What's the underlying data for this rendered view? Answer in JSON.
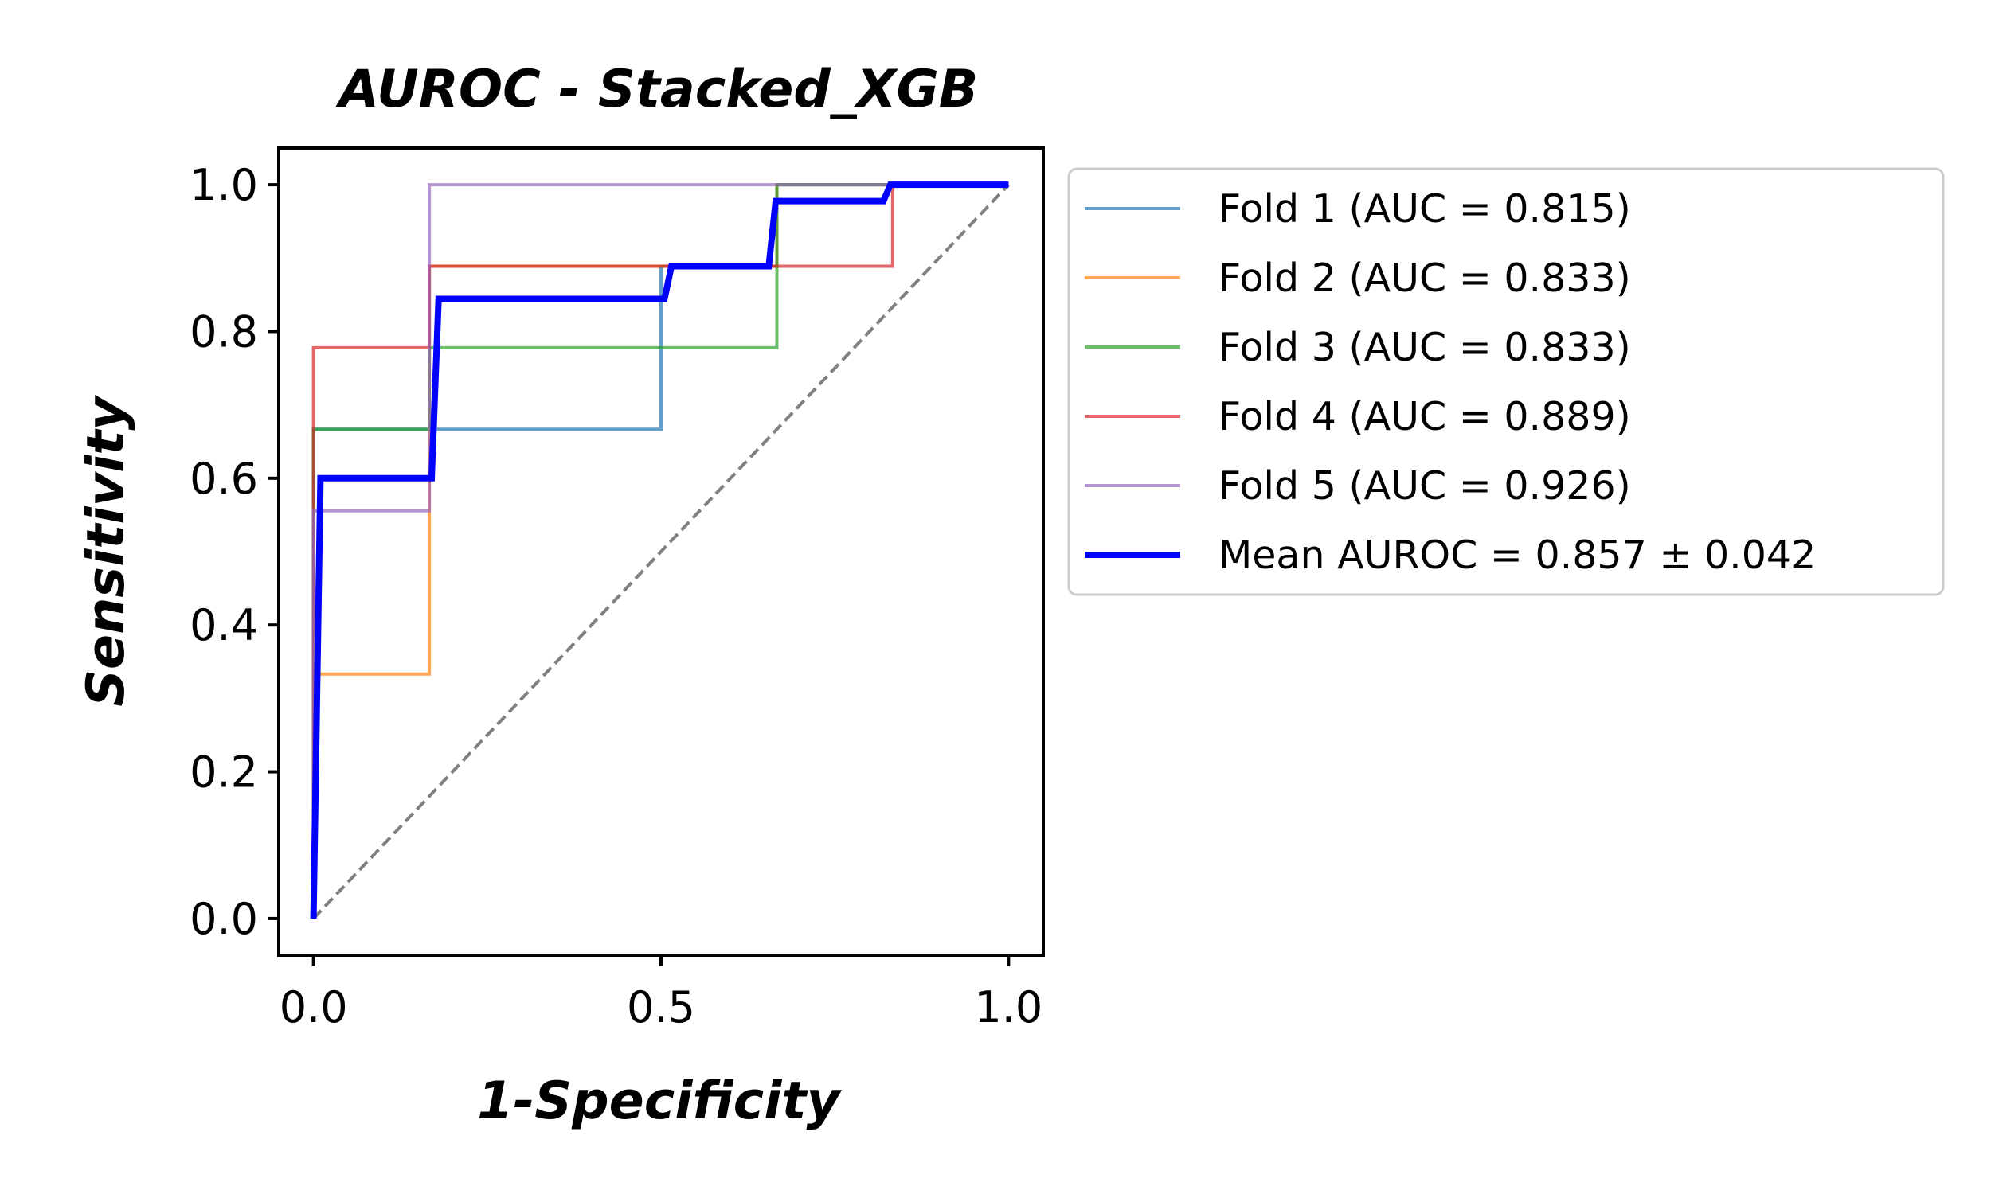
{
  "chart_data": {
    "type": "line",
    "title": "AUROC - Stacked_XGB",
    "xlabel": "1-Specificity",
    "ylabel": "Sensitivity",
    "xlim": [
      -0.05,
      1.05
    ],
    "ylim": [
      -0.05,
      1.05
    ],
    "xticks": [
      0.0,
      0.5,
      1.0
    ],
    "xtick_labels": [
      "0.0",
      "0.5",
      "1.0"
    ],
    "yticks": [
      0.0,
      0.2,
      0.4,
      0.6,
      0.8,
      1.0
    ],
    "ytick_labels": [
      "0.0",
      "0.2",
      "0.4",
      "0.6",
      "0.8",
      "1.0"
    ],
    "grid": false,
    "legend_position": "outside-right",
    "series": [
      {
        "name": "Fold 1 (AUC = 0.815)",
        "color": "#1f77b4",
        "opacity": 0.7,
        "width": 4,
        "x": [
          0,
          0,
          0,
          0.5,
          0.5,
          0.6667,
          0.6667,
          1.0
        ],
        "y": [
          0,
          0.6667,
          0.6667,
          0.6667,
          0.8889,
          0.8889,
          1.0,
          1.0
        ]
      },
      {
        "name": "Fold 2 (AUC = 0.833)",
        "color": "#ff7f0e",
        "opacity": 0.7,
        "width": 4,
        "x": [
          0,
          0,
          0.1667,
          0.1667,
          0.6667,
          0.6667,
          1.0
        ],
        "y": [
          0,
          0.3333,
          0.3333,
          0.8889,
          0.8889,
          1.0,
          1.0
        ]
      },
      {
        "name": "Fold 3 (AUC = 0.833)",
        "color": "#2ca02c",
        "opacity": 0.7,
        "width": 4,
        "x": [
          0,
          0,
          0.1667,
          0.1667,
          0.6667,
          0.6667,
          1.0
        ],
        "y": [
          0,
          0.6667,
          0.6667,
          0.7778,
          0.7778,
          1.0,
          1.0
        ]
      },
      {
        "name": "Fold 4 (AUC = 0.889)",
        "color": "#d62728",
        "opacity": 0.7,
        "width": 4,
        "x": [
          0,
          0,
          0.1667,
          0.1667,
          0.8333,
          0.8333,
          1.0
        ],
        "y": [
          0,
          0.7778,
          0.7778,
          0.8889,
          0.8889,
          1.0,
          1.0
        ]
      },
      {
        "name": "Fold 5 (AUC = 0.926)",
        "color": "#9467bd",
        "opacity": 0.7,
        "width": 4,
        "x": [
          0,
          0,
          0.1667,
          0.1667,
          1.0
        ],
        "y": [
          0,
          0.5556,
          0.5556,
          1.0,
          1.0
        ]
      },
      {
        "name": "Mean AUROC = 0.857 ± 0.042",
        "color": "#0000ff",
        "opacity": 1.0,
        "width": 8,
        "x": [
          0,
          0.01,
          0.02,
          0.16,
          0.17,
          0.18,
          0.495,
          0.505,
          0.515,
          0.655,
          0.665,
          0.675,
          0.82,
          0.83,
          0.84,
          1.0
        ],
        "y": [
          0,
          0.6,
          0.6,
          0.6,
          0.6,
          0.8444,
          0.8444,
          0.8444,
          0.8889,
          0.8889,
          0.9778,
          0.9778,
          0.9778,
          1.0,
          1.0,
          1.0
        ]
      }
    ],
    "reference_line": {
      "color": "#808080",
      "dash": "dashed",
      "x": [
        0,
        1
      ],
      "y": [
        0,
        1
      ]
    }
  }
}
